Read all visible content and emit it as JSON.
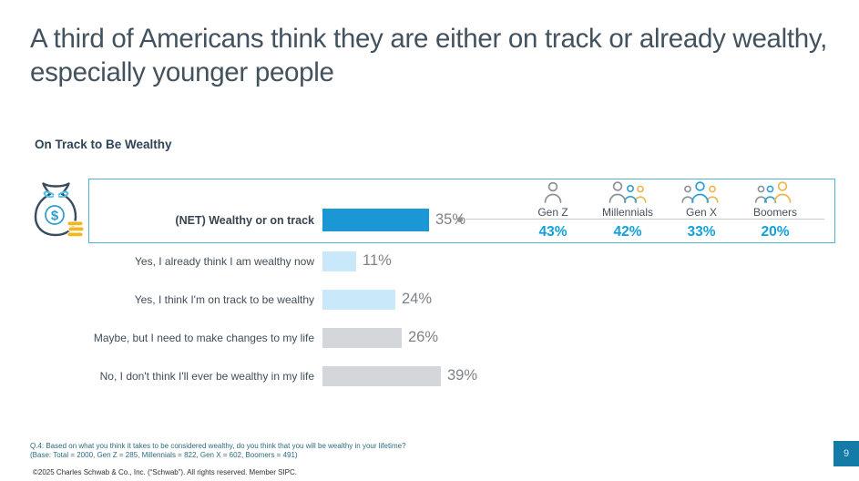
{
  "slide": {
    "title": "A third of Americans think they are either on track or already wealthy, especially younger people",
    "page_number": "9",
    "footnote_line1": "Q.4:  Based on what you think it takes to be considered wealthy, do you think that you will be wealthy in your lifetime?",
    "footnote_line2": "(Base: Total = 2000, Gen Z = 285, Millennials = 822, Gen X = 602, Boomers = 491)",
    "copyright": "©2025 Charles Schwab & Co., Inc. (“Schwab”). All rights reserved. Member SIPC."
  },
  "chart_data": {
    "type": "bar",
    "orientation": "horizontal",
    "title": "On Track to Be Wealthy",
    "categories": [
      "(NET) Wealthy or on track",
      "Yes, I already think I am wealthy now",
      "Yes, I think I'm on track to be wealthy",
      "Maybe, but I need to make changes to my life",
      "No, I don't think I'll ever be wealthy in my life"
    ],
    "values": [
      35,
      11,
      24,
      26,
      39
    ],
    "value_labels": [
      "35%",
      "11%",
      "24%",
      "26%",
      "39%"
    ],
    "unit": "%",
    "xlim": [
      0,
      100
    ],
    "grid": false,
    "legend": false,
    "net_breakdown": {
      "categories": [
        "Gen Z",
        "Millennials",
        "Gen X",
        "Boomers"
      ],
      "values": [
        43,
        42,
        33,
        20
      ],
      "value_labels": [
        "43%",
        "42%",
        "33%",
        "20%"
      ]
    }
  },
  "icons": {
    "money_bag": "money-bag-icon",
    "gen_z": "person-single-icon",
    "millennials": "person-group-icon",
    "gen_x": "person-group-icon",
    "boomers": "person-group-icon"
  },
  "colors": {
    "net_bar": "#1b97d5",
    "light_blue_bar": "#c9e8fa",
    "gray_bar": "#d3d7dc",
    "breakdown_value": "#13a0da",
    "box_border": "#52b3d6",
    "title_text": "#42525e",
    "coin_gold": "#f3b71d",
    "page_box": "#147aa6"
  }
}
